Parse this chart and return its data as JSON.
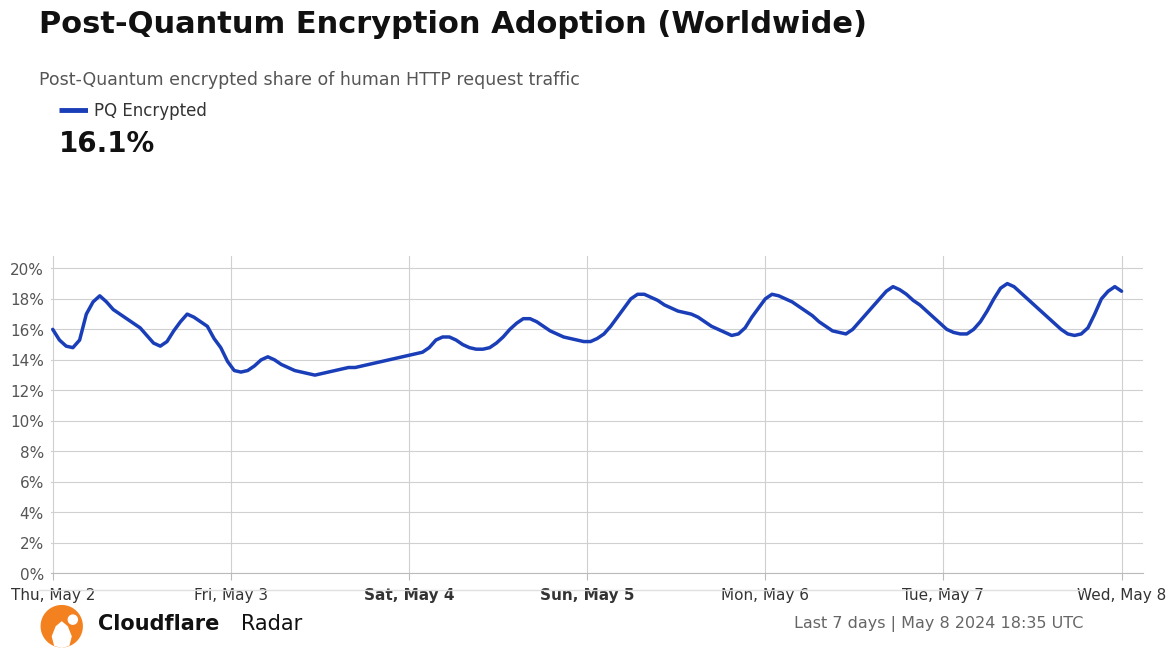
{
  "title": "Post-Quantum Encryption Adoption (Worldwide)",
  "subtitle": "Post-Quantum encrypted share of human HTTP request traffic",
  "legend_label": "PQ Encrypted",
  "current_value": "16.1%",
  "line_color": "#1a3eb8",
  "line_width": 2.5,
  "background_color": "#ffffff",
  "grid_color": "#d0d0d0",
  "x_tick_labels": [
    "Thu, May 2",
    "Fri, May 3",
    "Sat, May 4",
    "Sun, May 5",
    "Mon, May 6",
    "Tue, May 7",
    "Wed, May 8"
  ],
  "x_tick_bold": [
    false,
    false,
    true,
    true,
    false,
    false,
    false
  ],
  "y_ticks": [
    0,
    2,
    4,
    6,
    8,
    10,
    12,
    14,
    16,
    18,
    20
  ],
  "ylim": [
    0,
    20.8
  ],
  "footer_right": "Last 7 days | May 8 2024 18:35 UTC",
  "cloudflare_orange": "#f48120",
  "y_values": [
    16.0,
    15.3,
    14.9,
    14.8,
    15.3,
    17.0,
    17.8,
    18.2,
    17.8,
    17.3,
    17.0,
    16.7,
    16.4,
    16.1,
    15.6,
    15.1,
    14.9,
    15.2,
    15.9,
    16.5,
    17.0,
    16.8,
    16.5,
    16.2,
    15.4,
    14.8,
    13.9,
    13.3,
    13.2,
    13.3,
    13.6,
    14.0,
    14.2,
    14.0,
    13.7,
    13.5,
    13.3,
    13.2,
    13.1,
    13.0,
    13.1,
    13.2,
    13.3,
    13.4,
    13.5,
    13.5,
    13.6,
    13.7,
    13.8,
    13.9,
    14.0,
    14.1,
    14.2,
    14.3,
    14.4,
    14.5,
    14.8,
    15.3,
    15.5,
    15.5,
    15.3,
    15.0,
    14.8,
    14.7,
    14.7,
    14.8,
    15.1,
    15.5,
    16.0,
    16.4,
    16.7,
    16.7,
    16.5,
    16.2,
    15.9,
    15.7,
    15.5,
    15.4,
    15.3,
    15.2,
    15.2,
    15.4,
    15.7,
    16.2,
    16.8,
    17.4,
    18.0,
    18.3,
    18.3,
    18.1,
    17.9,
    17.6,
    17.4,
    17.2,
    17.1,
    17.0,
    16.8,
    16.5,
    16.2,
    16.0,
    15.8,
    15.6,
    15.7,
    16.1,
    16.8,
    17.4,
    18.0,
    18.3,
    18.2,
    18.0,
    17.8,
    17.5,
    17.2,
    16.9,
    16.5,
    16.2,
    15.9,
    15.8,
    15.7,
    16.0,
    16.5,
    17.0,
    17.5,
    18.0,
    18.5,
    18.8,
    18.6,
    18.3,
    17.9,
    17.6,
    17.2,
    16.8,
    16.4,
    16.0,
    15.8,
    15.7,
    15.7,
    16.0,
    16.5,
    17.2,
    18.0,
    18.7,
    19.0,
    18.8,
    18.4,
    18.0,
    17.6,
    17.2,
    16.8,
    16.4,
    16.0,
    15.7,
    15.6,
    15.7,
    16.1,
    17.0,
    18.0,
    18.5,
    18.8,
    18.5
  ]
}
